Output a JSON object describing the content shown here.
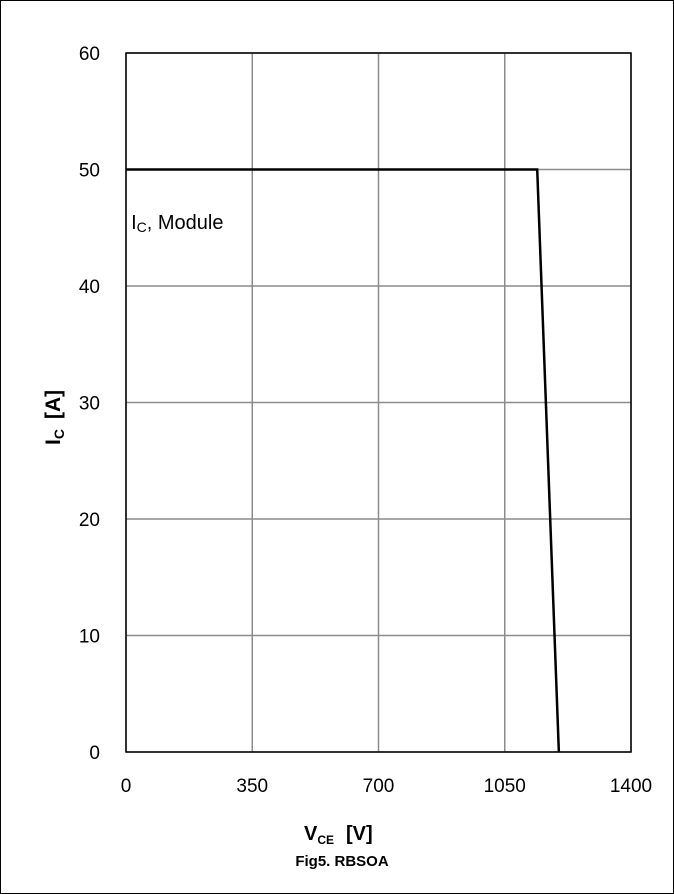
{
  "chart_data": {
    "type": "line",
    "caption": "Fig5. RBSOA",
    "xlabel": {
      "main": "V",
      "sub": "CE",
      "unit": "[V]"
    },
    "ylabel": {
      "main": "I",
      "sub": "C",
      "unit": "[A]"
    },
    "xlim": [
      0,
      1400
    ],
    "ylim": [
      0,
      60
    ],
    "x_ticks": [
      0,
      350,
      700,
      1050,
      1400
    ],
    "y_ticks": [
      0,
      10,
      20,
      30,
      40,
      50,
      60
    ],
    "grid": true,
    "annotation": {
      "main": "I",
      "sub": "C",
      "rest": ", Module",
      "x": 430,
      "y": 45.5
    },
    "series": [
      {
        "x": [
          0,
          1140,
          1200
        ],
        "y": [
          50,
          50,
          0
        ],
        "color": "#000000"
      }
    ]
  }
}
